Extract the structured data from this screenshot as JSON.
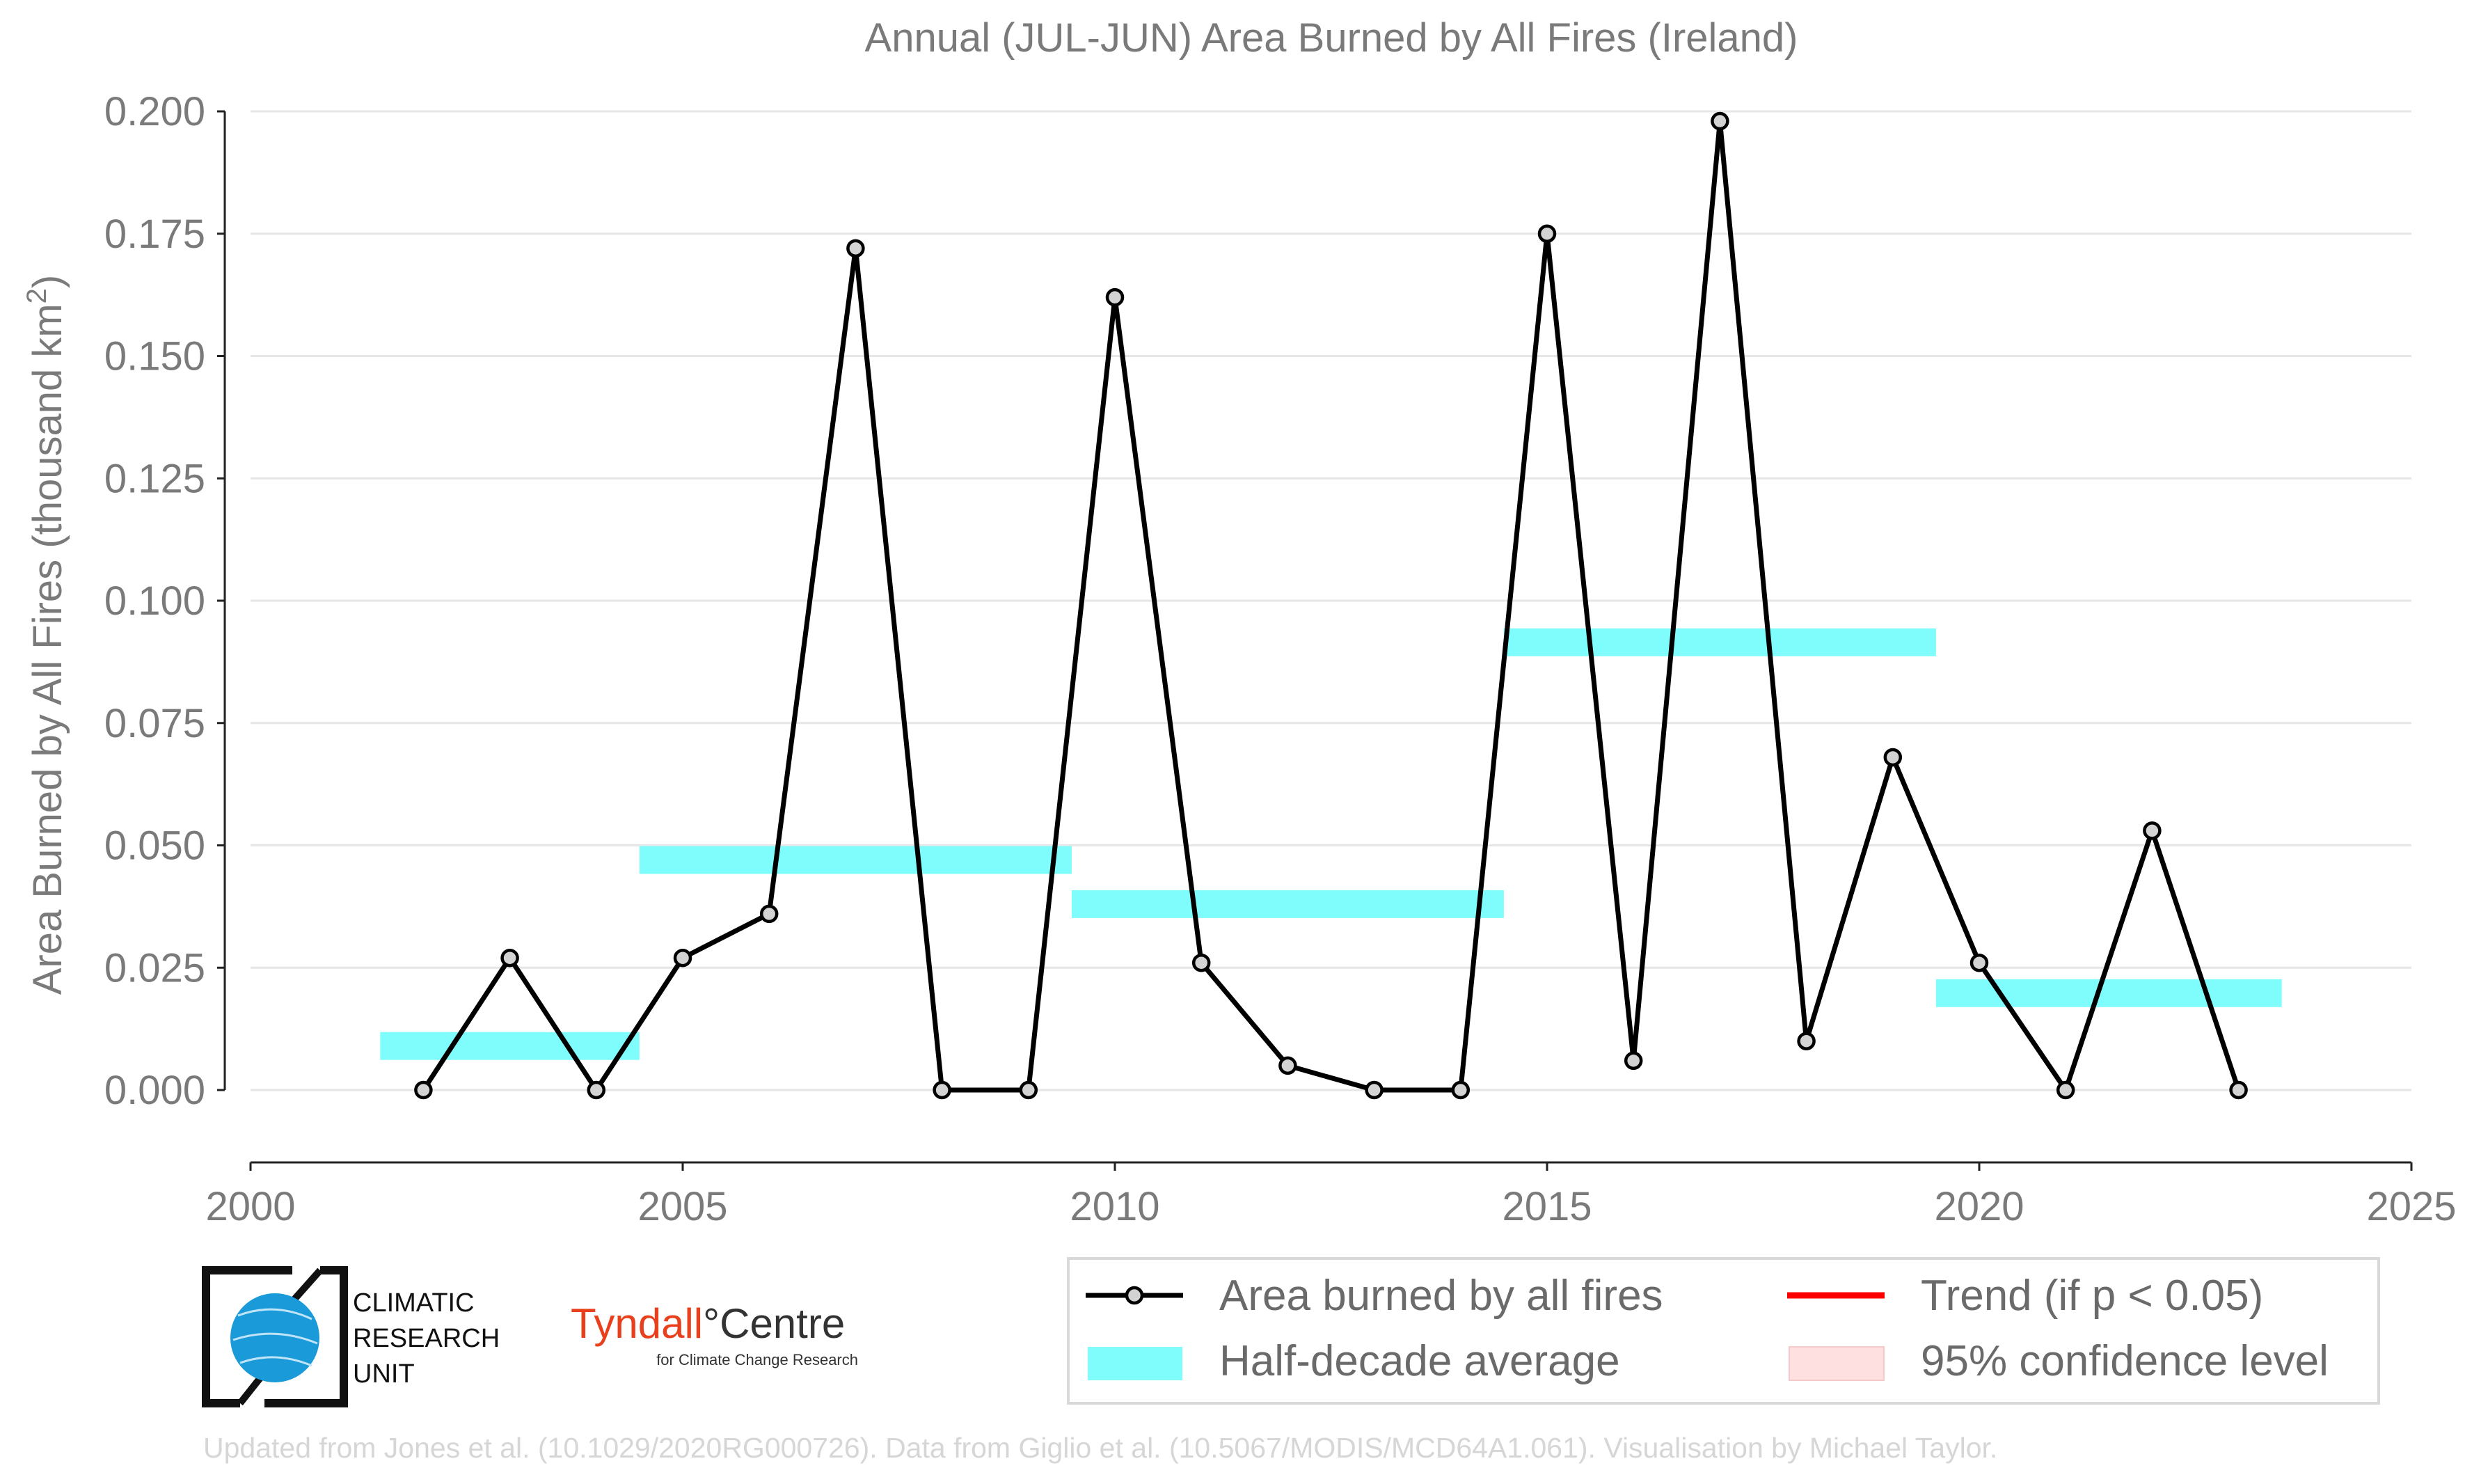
{
  "chart_data": {
    "type": "line",
    "title": "Annual (JUL-JUN) Area Burned by All Fires (Ireland)",
    "ylabel": "Area Burned by All Fires (thousand km",
    "ylabel_sup": "2",
    "ylabel_end": ")",
    "xlabel": "",
    "xlim": [
      2000,
      2025
    ],
    "ylim": [
      -0.015,
      0.2
    ],
    "xticks": [
      2000,
      2005,
      2010,
      2015,
      2020,
      2025
    ],
    "yticks": [
      0.0,
      0.025,
      0.05,
      0.075,
      0.1,
      0.125,
      0.15,
      0.175,
      0.2
    ],
    "ytick_labels": [
      "0.000",
      "0.025",
      "0.050",
      "0.075",
      "0.100",
      "0.125",
      "0.150",
      "0.175",
      "0.200"
    ],
    "grid": true,
    "series": [
      {
        "name": "Area burned by all fires",
        "x": [
          2002,
          2003,
          2004,
          2005,
          2006,
          2007,
          2008,
          2009,
          2010,
          2011,
          2012,
          2013,
          2014,
          2015,
          2016,
          2017,
          2018,
          2019,
          2020,
          2021,
          2022,
          2023
        ],
        "y": [
          0.0,
          0.027,
          0.0,
          0.027,
          0.036,
          0.172,
          0.0,
          0.0,
          0.162,
          0.026,
          0.005,
          0.0,
          0.0,
          0.175,
          0.006,
          0.198,
          0.01,
          0.068,
          0.026,
          0.0,
          0.053,
          0.0
        ],
        "color": "#000000"
      }
    ],
    "half_decade_average": {
      "name": "Half-decade average",
      "color": "#7ffdfd",
      "segments": [
        {
          "x0": 2001.5,
          "x1": 2004.5,
          "y": 0.009
        },
        {
          "x0": 2004.5,
          "x1": 2009.5,
          "y": 0.047
        },
        {
          "x0": 2009.5,
          "x1": 2014.5,
          "y": 0.038
        },
        {
          "x0": 2014.5,
          "x1": 2019.5,
          "y": 0.0915
        },
        {
          "x0": 2019.5,
          "x1": 2023.5,
          "y": 0.0198
        }
      ]
    },
    "legend": {
      "placement": "bottom-right",
      "entries": [
        {
          "label": "Area burned by all fires",
          "kind": "line-marker",
          "color": "#000000"
        },
        {
          "label": "Trend (if p < 0.05)",
          "kind": "line",
          "color": "#ff0000"
        },
        {
          "label": "Half-decade average",
          "kind": "band",
          "color": "#7ffdfd"
        },
        {
          "label": "95% confidence level",
          "kind": "band",
          "color": "#ffe0e0"
        }
      ]
    }
  },
  "logos": {
    "cru_lines": [
      "CLIMATIC",
      "RESEARCH",
      "UNIT"
    ],
    "tyndall_name": "Tyndall",
    "tyndall_degree": "°",
    "tyndall_centre": "Centre",
    "tyndall_sub": "for Climate Change Research"
  },
  "footer": "Updated from Jones et al. (10.1029/2020RG000726). Data from Giglio et al. (10.5067/MODIS/MCD64A1.061). Visualisation by Michael Taylor."
}
